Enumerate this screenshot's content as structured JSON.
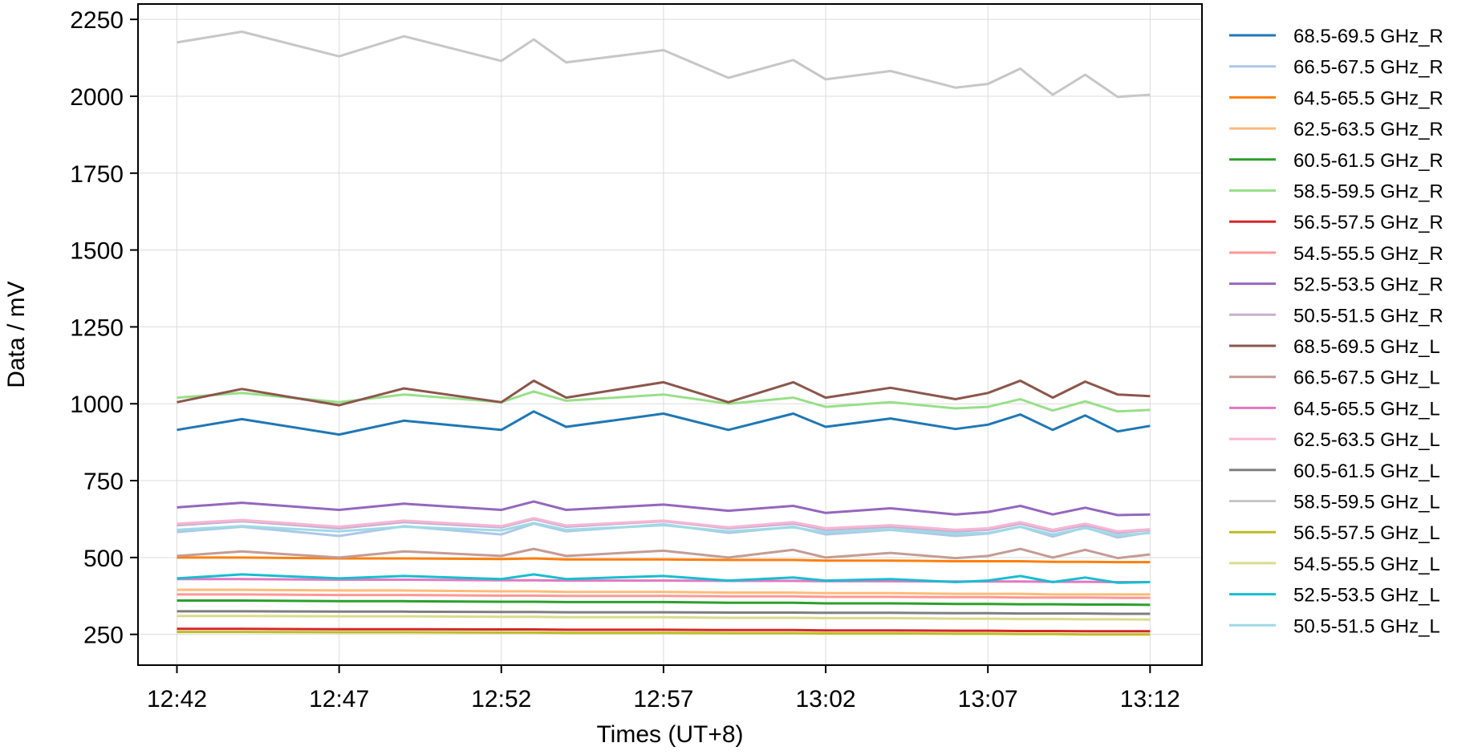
{
  "chart_data": {
    "type": "line",
    "title": "",
    "xlabel": "Times (UT+8)",
    "ylabel": "Data / mV",
    "x_ticks": [
      "12:42",
      "12:47",
      "12:52",
      "12:57",
      "13:02",
      "13:07",
      "13:12"
    ],
    "x_tick_minutes": [
      0,
      5,
      10,
      15,
      20,
      25,
      30
    ],
    "xlim_minutes": [
      -1.2,
      31.6
    ],
    "ylim": [
      150,
      2300
    ],
    "y_ticks": [
      250,
      500,
      750,
      1000,
      1250,
      1500,
      1750,
      2000,
      2250
    ],
    "grid": true,
    "legend_position": "right-outside",
    "x": [
      "12:42",
      "12:44",
      "12:47",
      "12:49",
      "12:52",
      "12:53",
      "12:54",
      "12:57",
      "12:59",
      "13:01",
      "13:02",
      "13:04",
      "13:06",
      "13:07",
      "13:08",
      "13:09",
      "13:10",
      "13:11",
      "13:12"
    ],
    "series": [
      {
        "name": "68.5-69.5 GHz_R",
        "color": "#1f77b4",
        "values": [
          915,
          950,
          900,
          945,
          915,
          975,
          925,
          968,
          915,
          968,
          925,
          952,
          918,
          932,
          965,
          915,
          962,
          910,
          928
        ]
      },
      {
        "name": "66.5-67.5 GHz_R",
        "color": "#aec7e8",
        "values": [
          583,
          600,
          570,
          602,
          575,
          610,
          585,
          608,
          580,
          600,
          575,
          590,
          570,
          578,
          600,
          568,
          598,
          565,
          582
        ]
      },
      {
        "name": "64.5-65.5 GHz_R",
        "color": "#ff7f0e",
        "values": [
          500,
          500,
          497,
          497,
          495,
          497,
          494,
          494,
          492,
          492,
          490,
          490,
          488,
          488,
          488,
          486,
          486,
          485,
          485
        ]
      },
      {
        "name": "62.5-63.5 GHz_R",
        "color": "#ffbb78",
        "values": [
          395,
          395,
          393,
          393,
          390,
          390,
          388,
          388,
          386,
          386,
          384,
          384,
          382,
          382,
          382,
          380,
          380,
          380,
          380
        ]
      },
      {
        "name": "60.5-61.5 GHz_R",
        "color": "#2ca02c",
        "values": [
          360,
          360,
          358,
          358,
          356,
          356,
          355,
          355,
          353,
          353,
          351,
          351,
          349,
          349,
          348,
          348,
          347,
          347,
          346
        ]
      },
      {
        "name": "58.5-59.5 GHz_R",
        "color": "#98df8a",
        "values": [
          1020,
          1035,
          1005,
          1030,
          1005,
          1040,
          1010,
          1030,
          1000,
          1020,
          990,
          1005,
          985,
          990,
          1015,
          978,
          1008,
          975,
          980
        ]
      },
      {
        "name": "56.5-57.5 GHz_R",
        "color": "#d62728",
        "values": [
          268,
          268,
          267,
          267,
          266,
          266,
          265,
          265,
          264,
          264,
          263,
          263,
          262,
          262,
          261,
          261,
          260,
          260,
          260
        ]
      },
      {
        "name": "54.5-55.5 GHz_R",
        "color": "#ff9896",
        "values": [
          380,
          380,
          378,
          378,
          376,
          376,
          375,
          375,
          374,
          374,
          372,
          372,
          371,
          371,
          370,
          370,
          370,
          369,
          369
        ]
      },
      {
        "name": "52.5-53.5 GHz_R",
        "color": "#9467bd",
        "values": [
          663,
          678,
          655,
          675,
          655,
          682,
          655,
          672,
          652,
          668,
          645,
          660,
          640,
          648,
          668,
          640,
          662,
          638,
          640
        ]
      },
      {
        "name": "50.5-51.5 GHz_R",
        "color": "#c5b0d5",
        "values": [
          605,
          618,
          595,
          615,
          598,
          625,
          600,
          618,
          595,
          610,
          590,
          600,
          585,
          590,
          610,
          585,
          605,
          580,
          590
        ]
      },
      {
        "name": "68.5-69.5 GHz_L",
        "color": "#8c564b",
        "values": [
          1005,
          1048,
          995,
          1050,
          1005,
          1075,
          1020,
          1070,
          1005,
          1070,
          1020,
          1052,
          1015,
          1035,
          1075,
          1020,
          1072,
          1030,
          1025
        ]
      },
      {
        "name": "66.5-67.5 GHz_L",
        "color": "#c49c94",
        "values": [
          505,
          520,
          500,
          520,
          505,
          528,
          505,
          522,
          500,
          525,
          500,
          515,
          498,
          505,
          528,
          500,
          525,
          498,
          510
        ]
      },
      {
        "name": "64.5-65.5 GHz_L",
        "color": "#e377c2",
        "values": [
          430,
          430,
          428,
          428,
          426,
          426,
          425,
          425,
          424,
          424,
          423,
          423,
          422,
          422,
          422,
          421,
          421,
          420,
          420
        ]
      },
      {
        "name": "62.5-63.5 GHz_L",
        "color": "#f7b6d2",
        "values": [
          610,
          622,
          600,
          620,
          602,
          628,
          604,
          620,
          598,
          615,
          595,
          605,
          590,
          595,
          615,
          590,
          610,
          585,
          592
        ]
      },
      {
        "name": "60.5-61.5 GHz_L",
        "color": "#7f7f7f",
        "values": [
          325,
          325,
          324,
          324,
          323,
          323,
          322,
          322,
          321,
          321,
          320,
          320,
          319,
          319,
          318,
          318,
          318,
          317,
          317
        ]
      },
      {
        "name": "58.5-59.5 GHz_L",
        "color": "#c7c7c7",
        "values": [
          2175,
          2210,
          2130,
          2195,
          2115,
          2185,
          2110,
          2150,
          2060,
          2118,
          2055,
          2082,
          2028,
          2040,
          2090,
          2005,
          2070,
          1998,
          2005
        ]
      },
      {
        "name": "56.5-57.5 GHz_L",
        "color": "#bcbd22",
        "values": [
          258,
          258,
          257,
          257,
          256,
          256,
          255,
          255,
          254,
          254,
          253,
          253,
          252,
          252,
          251,
          251,
          250,
          250,
          250
        ]
      },
      {
        "name": "54.5-55.5 GHz_L",
        "color": "#dbdb8d",
        "values": [
          310,
          310,
          309,
          309,
          307,
          307,
          306,
          306,
          304,
          304,
          303,
          303,
          301,
          301,
          300,
          300,
          299,
          299,
          298
        ]
      },
      {
        "name": "52.5-53.5 GHz_L",
        "color": "#17becf",
        "values": [
          432,
          445,
          432,
          440,
          430,
          445,
          430,
          440,
          425,
          435,
          425,
          430,
          420,
          425,
          440,
          420,
          435,
          418,
          420
        ]
      },
      {
        "name": "50.5-51.5 GHz_L",
        "color": "#9edae5",
        "values": [
          590,
          602,
          585,
          600,
          588,
          612,
          590,
          605,
          585,
          598,
          582,
          592,
          578,
          580,
          600,
          575,
          596,
          572,
          580
        ]
      }
    ]
  }
}
